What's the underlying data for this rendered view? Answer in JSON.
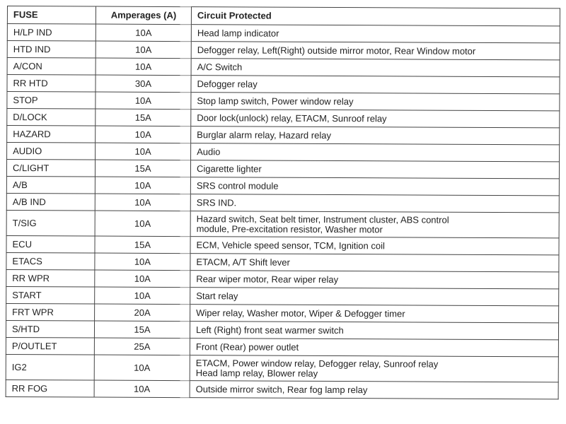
{
  "headers": {
    "fuse": "FUSE",
    "amperage": "Amperages (A)",
    "circuit": "Circuit Protected"
  },
  "rows": [
    {
      "fuse": "H/LP IND",
      "amp": "10A",
      "circuit": "Head lamp indicator"
    },
    {
      "fuse": "HTD IND",
      "amp": "10A",
      "circuit": "Defogger relay, Left(Right) outside mirror motor, Rear Window motor"
    },
    {
      "fuse": "A/CON",
      "amp": "10A",
      "circuit": "A/C Switch"
    },
    {
      "fuse": "RR HTD",
      "amp": "30A",
      "circuit": "Defogger relay"
    },
    {
      "fuse": "STOP",
      "amp": "10A",
      "circuit": "Stop lamp switch, Power window relay"
    },
    {
      "fuse": "D/LOCK",
      "amp": "15A",
      "circuit": "Door lock(unlock) relay, ETACM, Sunroof relay"
    },
    {
      "fuse": "HAZARD",
      "amp": "10A",
      "circuit": "Burglar alarm relay, Hazard relay"
    },
    {
      "fuse": "AUDIO",
      "amp": "10A",
      "circuit": "Audio"
    },
    {
      "fuse": "C/LIGHT",
      "amp": "15A",
      "circuit": "Cigarette lighter"
    },
    {
      "fuse": "A/B",
      "amp": "10A",
      "circuit": "SRS control module"
    },
    {
      "fuse": "A/B IND",
      "amp": "10A",
      "circuit": "SRS IND."
    },
    {
      "fuse": "T/SIG",
      "amp": "10A",
      "circuit": "Hazard switch, Seat belt timer, Instrument cluster, ABS control",
      "circuit2": "module, Pre-excitation resistor, Washer motor"
    },
    {
      "fuse": "ECU",
      "amp": "15A",
      "circuit": "ECM, Vehicle speed sensor, TCM, Ignition coil"
    },
    {
      "fuse": "ETACS",
      "amp": "10A",
      "circuit": "ETACM, A/T Shift lever"
    },
    {
      "fuse": "RR WPR",
      "amp": "10A",
      "circuit": "Rear wiper motor, Rear wiper relay"
    },
    {
      "fuse": "START",
      "amp": "10A",
      "circuit": "Start relay"
    },
    {
      "fuse": "FRT WPR",
      "amp": "20A",
      "circuit": "Wiper relay, Washer motor, Wiper & Defogger timer"
    },
    {
      "fuse": "S/HTD",
      "amp": "15A",
      "circuit": "Left (Right) front seat warmer switch"
    },
    {
      "fuse": "P/OUTLET",
      "amp": "25A",
      "circuit": "Front (Rear) power outlet"
    },
    {
      "fuse": "IG2",
      "amp": "10A",
      "circuit": "ETACM, Power window relay, Defogger relay, Sunroof relay",
      "circuit2": "Head lamp relay, Blower relay"
    },
    {
      "fuse": "RR FOG",
      "amp": "10A",
      "circuit": "Outside mirror switch, Rear fog lamp relay"
    }
  ]
}
